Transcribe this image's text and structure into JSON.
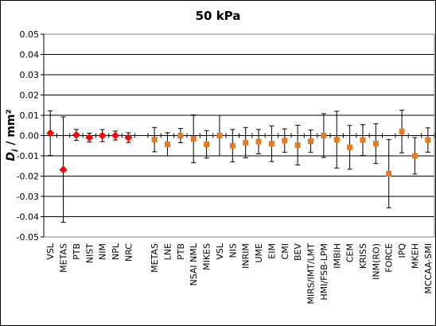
{
  "chart_data": {
    "type": "scatter",
    "title": "50 kPa",
    "ylabel": "D_i / mm²",
    "ylabel_parts": {
      "italic": "D",
      "sub": "i",
      "rest": " / mm²"
    },
    "ylim": [
      -0.05,
      0.05
    ],
    "yticks": [
      "0.05",
      "0.04",
      "0.03",
      "0.02",
      "0.01",
      "0.00",
      "-0.01",
      "-0.02",
      "-0.03",
      "-0.04",
      "-0.05"
    ],
    "ytick_values": [
      0.05,
      0.04,
      0.03,
      0.02,
      0.01,
      0.0,
      -0.01,
      -0.02,
      -0.03,
      -0.04,
      -0.05
    ],
    "grid": true,
    "legend": "none",
    "categories": [
      "VSL",
      "METAS",
      "PTB",
      "NIST",
      "NIM",
      "NPL",
      "NRC",
      "",
      "METAS",
      "LNE",
      "PTB",
      "NSAI NML",
      "MIKES",
      "VSL",
      "NIS",
      "INRIM",
      "UME",
      "EIM",
      "CMI",
      "BEV",
      "MIRS/IMT/LMT",
      "HMI/FSB-LPM",
      "IMBIH",
      "CEM",
      "KRISS",
      "INM(RO)",
      "FORCE",
      "IPQ",
      "MKEH",
      "MCCAA-SMI"
    ],
    "series": [
      {
        "marker": "diamond",
        "color": "#ff0000",
        "points": [
          {
            "category": "VSL",
            "index": 0,
            "y": 0.0012,
            "err": 0.011
          },
          {
            "category": "METAS",
            "index": 1,
            "y": -0.0168,
            "err": 0.026
          },
          {
            "category": "PTB",
            "index": 2,
            "y": 0.0003,
            "err": 0.0027
          },
          {
            "category": "NIST",
            "index": 3,
            "y": -0.001,
            "err": 0.0022
          },
          {
            "category": "NIM",
            "index": 4,
            "y": 0.0,
            "err": 0.003
          },
          {
            "category": "NPL",
            "index": 5,
            "y": 0.0,
            "err": 0.0022
          },
          {
            "category": "NRC",
            "index": 6,
            "y": -0.001,
            "err": 0.0024
          }
        ]
      },
      {
        "marker": "square",
        "color": "#e87a1e",
        "points": [
          {
            "category": "METAS",
            "index": 8,
            "y": -0.002,
            "err": 0.006
          },
          {
            "category": "LNE",
            "index": 9,
            "y": -0.0043,
            "err": 0.0057
          },
          {
            "category": "PTB",
            "index": 10,
            "y": 0.0,
            "err": 0.0035
          },
          {
            "category": "NSAI NML",
            "index": 11,
            "y": -0.0016,
            "err": 0.0118
          },
          {
            "category": "MIKES",
            "index": 12,
            "y": -0.0043,
            "err": 0.0068
          },
          {
            "category": "VSL",
            "index": 13,
            "y": 0.0,
            "err": 0.01
          },
          {
            "category": "NIS",
            "index": 14,
            "y": -0.005,
            "err": 0.008
          },
          {
            "category": "INRIM",
            "index": 15,
            "y": -0.0035,
            "err": 0.0075
          },
          {
            "category": "UME",
            "index": 16,
            "y": -0.003,
            "err": 0.006
          },
          {
            "category": "EIM",
            "index": 17,
            "y": -0.004,
            "err": 0.0088
          },
          {
            "category": "CMI",
            "index": 18,
            "y": -0.0025,
            "err": 0.0058
          },
          {
            "category": "BEV",
            "index": 19,
            "y": -0.0047,
            "err": 0.0098
          },
          {
            "category": "MIRS/IMT/LMT",
            "index": 20,
            "y": -0.0028,
            "err": 0.0055
          },
          {
            "category": "HMI/FSB-LPM",
            "index": 21,
            "y": 0.0,
            "err": 0.0108
          },
          {
            "category": "IMBIH",
            "index": 22,
            "y": -0.002,
            "err": 0.014
          },
          {
            "category": "CEM",
            "index": 23,
            "y": -0.0058,
            "err": 0.0108
          },
          {
            "category": "KRISS",
            "index": 24,
            "y": -0.0022,
            "err": 0.0076
          },
          {
            "category": "INM(RO)",
            "index": 25,
            "y": -0.004,
            "err": 0.0098
          },
          {
            "category": "FORCE",
            "index": 26,
            "y": -0.0188,
            "err": 0.0168
          },
          {
            "category": "IPQ",
            "index": 27,
            "y": 0.002,
            "err": 0.0105
          },
          {
            "category": "MKEH",
            "index": 28,
            "y": -0.01,
            "err": 0.009
          },
          {
            "category": "MCCAA-SMI",
            "index": 29,
            "y": -0.0022,
            "err": 0.006
          }
        ]
      }
    ]
  }
}
